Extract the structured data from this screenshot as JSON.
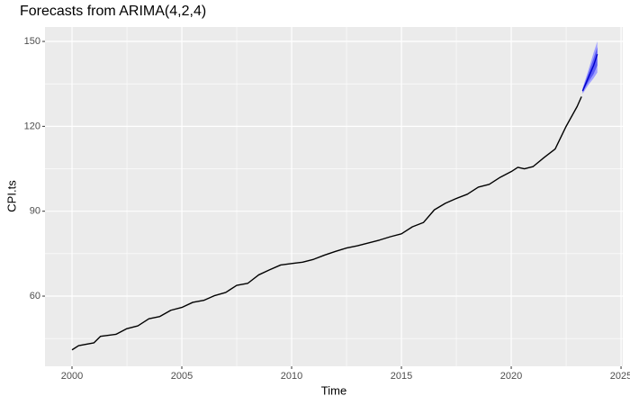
{
  "chart_data": {
    "type": "line",
    "title": "Forecasts from ARIMA(4,2,4)",
    "x_label": "Time",
    "y_label": "CPI.ts",
    "xlim": [
      1998.77,
      2025.08
    ],
    "ylim": [
      35.2,
      155.1
    ],
    "xticks": [
      2000,
      2005,
      2010,
      2015,
      2020,
      2025
    ],
    "yticks": [
      60,
      90,
      120,
      150
    ],
    "x_minor_ticks": [
      2002.5,
      2007.5,
      2012.5,
      2017.5,
      2022.5
    ],
    "y_minor_ticks": [
      45,
      75,
      105,
      135
    ],
    "grid": true,
    "series": [
      {
        "color": "#000000",
        "x": [
          2000.0,
          2000.3,
          2001.0,
          2001.3,
          2002.0,
          2002.5,
          2003.0,
          2003.5,
          2004.0,
          2004.5,
          2005.0,
          2005.5,
          2006.0,
          2006.5,
          2007.0,
          2007.5,
          2008.0,
          2008.5,
          2009.0,
          2009.5,
          2010.0,
          2010.5,
          2011.0,
          2011.5,
          2012.0,
          2012.5,
          2013.0,
          2013.5,
          2014.0,
          2014.5,
          2015.0,
          2015.5,
          2016.0,
          2016.5,
          2017.0,
          2017.5,
          2018.0,
          2018.5,
          2019.0,
          2019.5,
          2020.0,
          2020.3,
          2020.6,
          2021.0,
          2021.5,
          2022.0,
          2022.5,
          2023.0,
          2023.2
        ],
        "values": [
          41,
          42.5,
          43.5,
          45.8,
          46.5,
          48.5,
          49.5,
          52,
          52.8,
          55,
          56,
          57.8,
          58.5,
          60.2,
          61.3,
          63.8,
          64.5,
          67.5,
          69.3,
          71,
          71.5,
          72,
          73,
          74.5,
          75.8,
          77,
          77.8,
          78.8,
          79.8,
          81,
          82,
          84.5,
          86,
          90.5,
          92.8,
          94.5,
          96,
          98.5,
          99.5,
          102,
          104,
          105.5,
          105,
          105.8,
          109,
          112,
          120,
          127,
          130.5
        ]
      },
      {
        "color": "#0000cc",
        "x": [
          2023.25,
          2023.5,
          2023.75,
          2023.92
        ],
        "values": [
          132.5,
          137,
          141.5,
          145.5
        ]
      }
    ],
    "bands": [
      {
        "color": "#a0a0ff",
        "x": [
          2023.25,
          2023.5,
          2023.75,
          2023.92
        ],
        "lower": [
          131.5,
          134.5,
          137,
          139
        ],
        "upper": [
          133.5,
          139.5,
          146,
          150
        ]
      },
      {
        "color": "#5c5cf5",
        "x": [
          2023.25,
          2023.5,
          2023.75,
          2023.92
        ],
        "lower": [
          132,
          135.5,
          138.5,
          141.5
        ],
        "upper": [
          133,
          138.5,
          144,
          148
        ]
      }
    ]
  }
}
